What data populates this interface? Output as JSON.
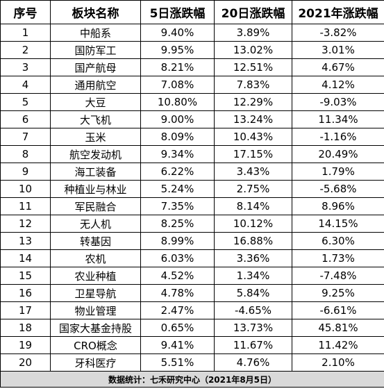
{
  "table": {
    "headers": [
      "序号",
      "板块名称",
      "5日涨跌幅",
      "20日涨跌幅",
      "2021年涨跌幅"
    ],
    "rows": [
      [
        "1",
        "中船系",
        "9.40%",
        "3.89%",
        "-3.82%"
      ],
      [
        "2",
        "国防军工",
        "9.95%",
        "13.02%",
        "3.01%"
      ],
      [
        "3",
        "国产航母",
        "8.21%",
        "12.51%",
        "4.67%"
      ],
      [
        "4",
        "通用航空",
        "7.08%",
        "7.83%",
        "4.12%"
      ],
      [
        "5",
        "大豆",
        "10.80%",
        "12.29%",
        "-9.03%"
      ],
      [
        "6",
        "大飞机",
        "9.00%",
        "13.24%",
        "11.34%"
      ],
      [
        "7",
        "玉米",
        "8.09%",
        "10.43%",
        "-1.16%"
      ],
      [
        "8",
        "航空发动机",
        "9.34%",
        "17.15%",
        "20.49%"
      ],
      [
        "9",
        "海工装备",
        "6.22%",
        "3.43%",
        "1.79%"
      ],
      [
        "10",
        "种植业与林业",
        "5.24%",
        "2.75%",
        "-5.68%"
      ],
      [
        "11",
        "军民融合",
        "7.35%",
        "8.14%",
        "8.96%"
      ],
      [
        "12",
        "无人机",
        "8.25%",
        "10.12%",
        "14.15%"
      ],
      [
        "13",
        "转基因",
        "8.99%",
        "16.88%",
        "6.30%"
      ],
      [
        "14",
        "农机",
        "6.03%",
        "3.36%",
        "1.73%"
      ],
      [
        "15",
        "农业种植",
        "4.52%",
        "1.34%",
        "-7.48%"
      ],
      [
        "16",
        "卫星导航",
        "4.78%",
        "5.84%",
        "9.25%"
      ],
      [
        "17",
        "物业管理",
        "2.47%",
        "-4.65%",
        "-6.61%"
      ],
      [
        "18",
        "国家大基金持股",
        "0.65%",
        "13.73%",
        "45.81%"
      ],
      [
        "19",
        "CRO概念",
        "9.41%",
        "11.67%",
        "11.42%"
      ],
      [
        "20",
        "牙科医疗",
        "5.51%",
        "4.76%",
        "2.10%"
      ]
    ],
    "footer": "数据统计：七禾研究中心（2021年8月5日）"
  }
}
